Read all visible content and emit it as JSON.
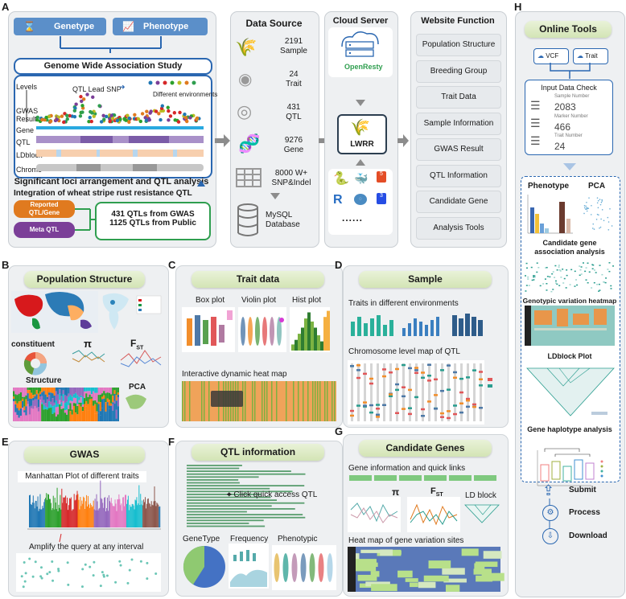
{
  "labels": [
    "A",
    "B",
    "C",
    "D",
    "E",
    "F",
    "G",
    "H"
  ],
  "panel_a": {
    "genotype": "Genetype",
    "phenotype": "Phenotype",
    "gwas_title": "Genome Wide Association Study",
    "levels": "Levels",
    "qtl_lead": "QTL Lead SNP",
    "diff_env": "Different environments",
    "tracks": [
      "GWAS\nResult",
      "Gene",
      "QTL",
      "LDblock",
      "Chrome"
    ],
    "track_gwas": "GWAS",
    "track_result": "Result",
    "track_gene": "Gene",
    "track_qtl": "QTL",
    "track_ld": "LDblock",
    "track_chrome": "Chrome",
    "significant": "Significant loci arrangement and QTL analysis",
    "integration": "Integration of wheat stripe rust resistance QTL",
    "reported": "Reported",
    "reported2": "QTL/Gene",
    "meta": "Meta QTL",
    "qtl_gwas": "431 QTLs from GWAS",
    "qtl_public": "1125 QTLs from Public"
  },
  "data_source": {
    "title": "Data Source",
    "items": [
      {
        "num": "2191",
        "label": "Sample"
      },
      {
        "num": "24",
        "label": "Trait"
      },
      {
        "num": "431",
        "label": "QTL"
      },
      {
        "num": "9276",
        "label": "Gene"
      },
      {
        "num": "8000 W+",
        "label": "SNP&Indel"
      }
    ],
    "mysql": "MySQL",
    "database": "Database"
  },
  "cloud": {
    "title": "Cloud Server",
    "openresty": "OpenResty",
    "lwrr": "LWRR",
    "dots": "......"
  },
  "website": {
    "title": "Website Function",
    "items": [
      "Population Structure",
      "Breeding Group",
      "Trait Data",
      "Sample Information",
      "GWAS Result",
      "QTL Information",
      "Candidate Gene",
      "Analysis Tools"
    ]
  },
  "panel_b": {
    "title": "Population Structure",
    "constituent": "constituent",
    "pi": "π",
    "fst": "F",
    "fst_sub": "ST",
    "structure": "Structure",
    "pca": "PCA"
  },
  "panel_c": {
    "title": "Trait data",
    "box": "Box plot",
    "violin": "Violin plot",
    "hist": "Hist plot",
    "heatmap": "Interactive dynamic heat map"
  },
  "panel_d": {
    "title": "Sample",
    "traits_env": "Traits in different environments",
    "chrom_map": "Chromosome level map of QTL"
  },
  "panel_e": {
    "title": "GWAS",
    "manhattan": "Manhattan Plot of different traits",
    "amplify": "Amplify the query at any interval"
  },
  "panel_f": {
    "title": "QTL information",
    "click": "Click quick access QTL",
    "genetype": "GeneType",
    "frequency": "Frequency",
    "phenotypic": "Phenotypic"
  },
  "panel_g": {
    "title": "Candidate Genes",
    "gene_info": "Gene information and quick links",
    "pi": "π",
    "fst": "F",
    "fst_sub": "ST",
    "ld": "LD block",
    "heatmap": "Heat map of gene variation sites"
  },
  "panel_h": {
    "title": "Online Tools",
    "vcf": "VCF",
    "trait": "Trait",
    "input_check": "Input Data Check",
    "sample_label": "Sample Number",
    "sample_num": "2083",
    "marker_label": "Marker Number",
    "marker_num": "466",
    "trait_label": "Trait Number",
    "trait_num": "24",
    "phenotype": "Phenotype",
    "pca": "PCA",
    "candidate": "Candidate gene",
    "candidate2": "association analysis",
    "geno_heat": "Genotypic variation heatmap",
    "ldblock": "LDblock Plot",
    "haplotype": "Gene haplotype analysis",
    "submit": "Submit",
    "process": "Process",
    "download": "Download"
  },
  "colors": {
    "blue": "#2a67b1",
    "green": "#2f9e4f",
    "orange": "#e07a1f",
    "purple": "#7b3f98",
    "teal": "#1aa39a"
  }
}
